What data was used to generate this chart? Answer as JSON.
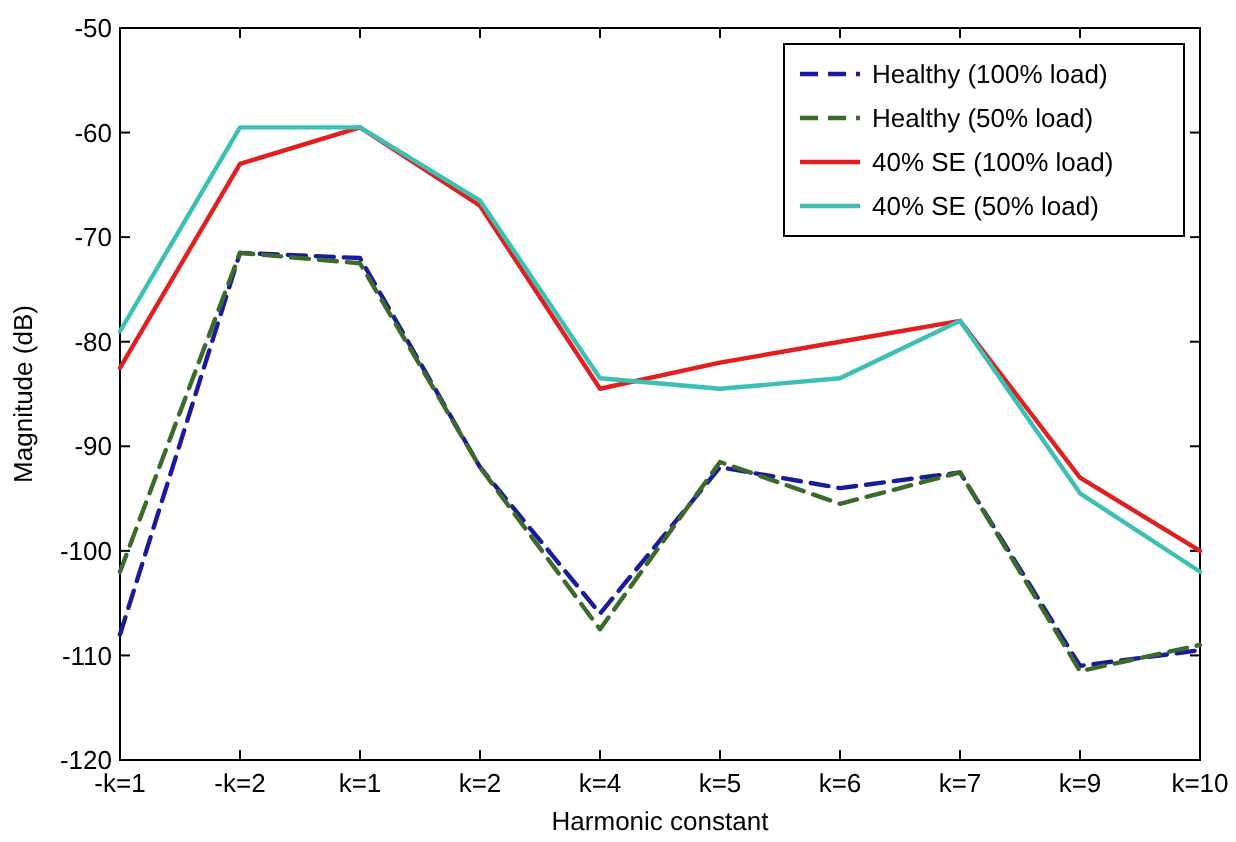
{
  "chart_data": {
    "type": "line",
    "xlabel": "Harmonic constant",
    "ylabel": "Magnitude (dB)",
    "categories": [
      "-k=1",
      "-k=2",
      "k=1",
      "k=2",
      "k=4",
      "k=5",
      "k=6",
      "k=7",
      "k=9",
      "k=10"
    ],
    "ylim": [
      -120,
      -50
    ],
    "yticks": [
      -120,
      -110,
      -100,
      -90,
      -80,
      -70,
      -60,
      -50
    ],
    "grid": false,
    "legend": "top right",
    "marker": "none",
    "series": [
      {
        "name": "Healthy (100% load)",
        "color": "#1a1a9c",
        "line_style": "dashed",
        "values": [
          -108,
          -71.5,
          -72,
          -92,
          -106,
          -92,
          -94,
          -92.5,
          -111,
          -109.5
        ]
      },
      {
        "name": "Healthy (50% load)",
        "color": "#3a6b2a",
        "line_style": "dashed",
        "values": [
          -102,
          -71.5,
          -72.5,
          -92,
          -107.5,
          -91.5,
          -95.5,
          -92.5,
          -111.5,
          -109
        ]
      },
      {
        "name": "40% SE (100% load)",
        "color": "#e01f1f",
        "line_style": "solid",
        "values": [
          -82.5,
          -63,
          -59.5,
          -67,
          -84.5,
          -82,
          -80,
          -78,
          -93,
          -100
        ]
      },
      {
        "name": "40% SE (50% load)",
        "color": "#3cbfb4",
        "line_style": "solid",
        "values": [
          -79,
          -59.5,
          -59.5,
          -66.5,
          -83.5,
          -84.5,
          -83.5,
          -78,
          -94.5,
          -102
        ]
      }
    ]
  }
}
